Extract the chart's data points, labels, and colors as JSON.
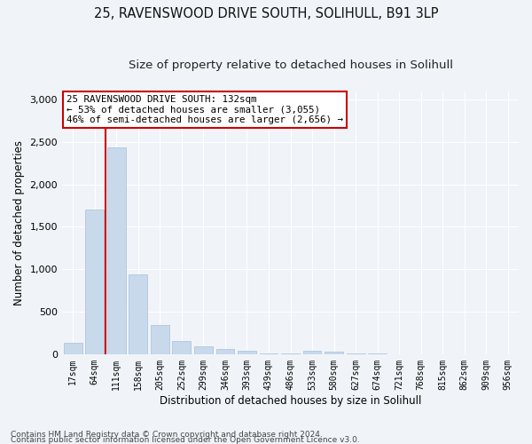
{
  "title_line1": "25, RAVENSWOOD DRIVE SOUTH, SOLIHULL, B91 3LP",
  "title_line2": "Size of property relative to detached houses in Solihull",
  "xlabel": "Distribution of detached houses by size in Solihull",
  "ylabel": "Number of detached properties",
  "bar_color": "#c8d9ec",
  "bar_edge_color": "#a8bfd8",
  "categories": [
    "17sqm",
    "64sqm",
    "111sqm",
    "158sqm",
    "205sqm",
    "252sqm",
    "299sqm",
    "346sqm",
    "393sqm",
    "439sqm",
    "486sqm",
    "533sqm",
    "580sqm",
    "627sqm",
    "674sqm",
    "721sqm",
    "768sqm",
    "815sqm",
    "862sqm",
    "909sqm",
    "956sqm"
  ],
  "values": [
    130,
    1700,
    2440,
    940,
    340,
    155,
    95,
    65,
    45,
    5,
    5,
    45,
    30,
    5,
    5,
    0,
    0,
    0,
    0,
    0,
    0
  ],
  "ylim": [
    0,
    3100
  ],
  "yticks": [
    0,
    500,
    1000,
    1500,
    2000,
    2500,
    3000
  ],
  "vline_x_index": 2,
  "vline_color": "#cc0000",
  "annotation_text": "25 RAVENSWOOD DRIVE SOUTH: 132sqm\n← 53% of detached houses are smaller (3,055)\n46% of semi-detached houses are larger (2,656) →",
  "annotation_box_facecolor": "#ffffff",
  "annotation_box_edgecolor": "#cc0000",
  "footer_line1": "Contains HM Land Registry data © Crown copyright and database right 2024.",
  "footer_line2": "Contains public sector information licensed under the Open Government Licence v3.0.",
  "fig_facecolor": "#f0f4f9",
  "plot_facecolor": "#f0f4f9",
  "title_fontsize": 10.5,
  "subtitle_fontsize": 9.5,
  "tick_fontsize": 7,
  "ylabel_fontsize": 8.5,
  "xlabel_fontsize": 8.5,
  "annotation_fontsize": 7.8,
  "footer_fontsize": 6.5
}
